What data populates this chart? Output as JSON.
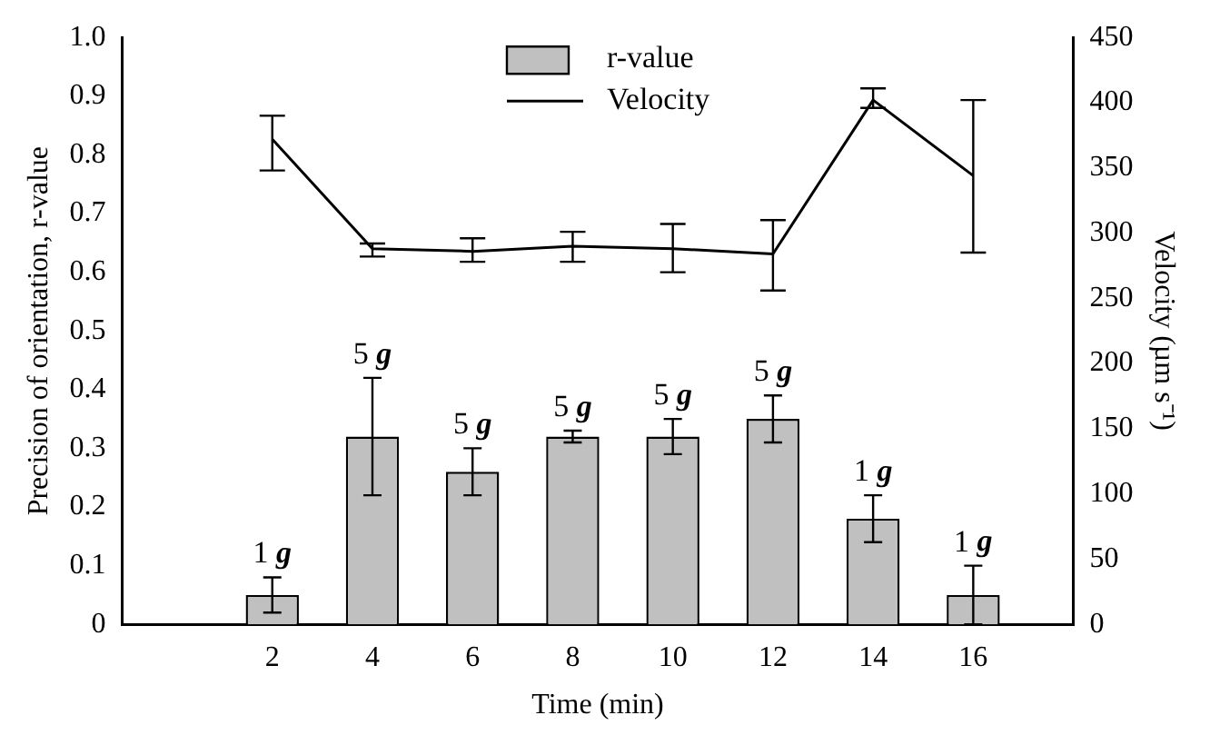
{
  "chart_data": {
    "type": "bar",
    "xlabel": "Time (min)",
    "ylabel": "Precision of orientation, r-value",
    "y2label": "Velocity (µm s⁻¹)",
    "x": [
      2,
      4,
      6,
      8,
      10,
      12,
      14,
      16
    ],
    "series": [
      {
        "name": "r-value",
        "color": "#c0c0c0",
        "values": [
          0.05,
          0.32,
          0.26,
          0.32,
          0.32,
          0.35,
          0.18,
          0.05
        ],
        "errors": [
          0.03,
          0.1,
          0.04,
          0.01,
          0.03,
          0.04,
          0.04,
          0.05
        ]
      },
      {
        "name": "Velocity",
        "type": "line",
        "axis": "y2",
        "color": "#000000",
        "values": [
          372,
          288,
          286,
          290,
          288,
          284,
          402,
          344
        ],
        "errors": [
          [
            348,
            390
          ],
          [
            282,
            292
          ],
          [
            278,
            296
          ],
          [
            278,
            301
          ],
          [
            270,
            307
          ],
          [
            256,
            310
          ],
          [
            396,
            411
          ],
          [
            285,
            402
          ]
        ]
      }
    ],
    "xlim": [
      -1,
      18
    ],
    "xticks": [
      2,
      4,
      6,
      8,
      10,
      12,
      14,
      16
    ],
    "ylim": [
      0,
      1
    ],
    "yticks": [
      0,
      0.1,
      0.2,
      0.3,
      0.4,
      0.5,
      0.6,
      0.7,
      0.8,
      0.9,
      {
        "value": 1,
        "label": "1.0"
      }
    ],
    "y2lim": [
      0,
      450
    ],
    "y2ticks": [
      0,
      50,
      100,
      150,
      200,
      250,
      300,
      350,
      400,
      450
    ],
    "annotations": [
      {
        "text": "1 g",
        "x": 2,
        "y": 0.08
      },
      {
        "text": "5 g",
        "x": 4,
        "y": 0.42
      },
      {
        "text": "5 g",
        "x": 6,
        "y": 0.3
      },
      {
        "text": "5 g",
        "x": 8,
        "y": 0.33
      },
      {
        "text": "5 g",
        "x": 10,
        "y": 0.35
      },
      {
        "text": "5 g",
        "x": 12,
        "y": 0.39
      },
      {
        "text": "1 g",
        "x": 14,
        "y": 0.22
      },
      {
        "text": "1 g",
        "x": 16,
        "y": 0.1
      }
    ],
    "legend": "top",
    "marker": "none",
    "line_style": "solid",
    "grid": false
  }
}
